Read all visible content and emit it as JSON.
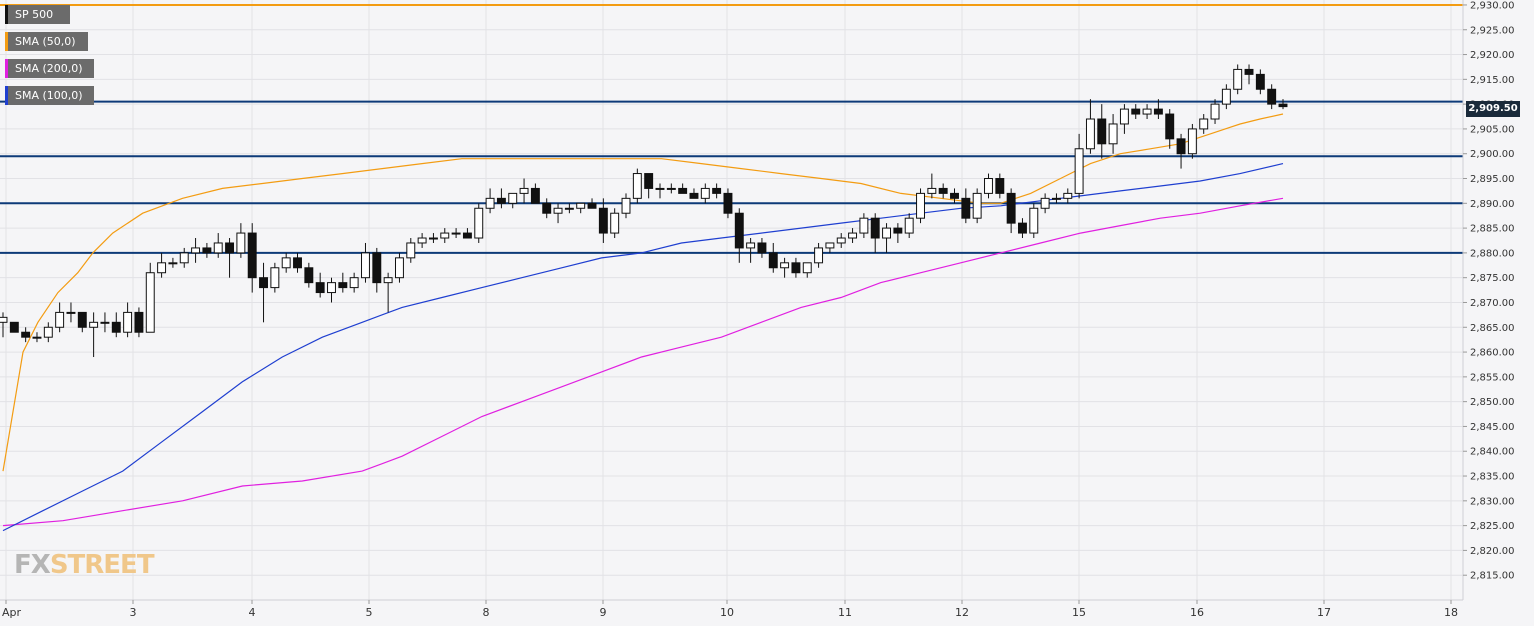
{
  "legend": [
    {
      "label": "SP 500",
      "color": "#111111"
    },
    {
      "label": "SMA (50,0)",
      "color": "#f39c12"
    },
    {
      "label": "SMA (200,0)",
      "color": "#e020e0"
    },
    {
      "label": "SMA (100,0)",
      "color": "#1f3fd0"
    }
  ],
  "price_badge": "2,909.50",
  "watermark": {
    "part1": "FX",
    "part2": "STREET"
  },
  "colors": {
    "background": "#f5f5f7",
    "grid": "#e2e2e6",
    "candle": "#111111",
    "sma50": "#f39c12",
    "sma100": "#1f3fd0",
    "sma200": "#e020e0",
    "level_line": "#0d3a78",
    "top_line": "#f39c12"
  },
  "chart_data": {
    "type": "candlestick",
    "title": "",
    "series_name": "SP 500",
    "ylim": [
      2810,
      2931
    ],
    "y_ticks": [
      2815,
      2820,
      2825,
      2830,
      2835,
      2840,
      2845,
      2850,
      2855,
      2860,
      2865,
      2870,
      2875,
      2880,
      2885,
      2890,
      2895,
      2900,
      2905,
      2910,
      2915,
      2920,
      2925,
      2930
    ],
    "y_tick_labels": [
      "2,815.00",
      "2,820.00",
      "2,825.00",
      "2,830.00",
      "2,835.00",
      "2,840.00",
      "2,845.00",
      "2,850.00",
      "2,855.00",
      "2,860.00",
      "2,865.00",
      "2,870.00",
      "2,875.00",
      "2,880.00",
      "2,885.00",
      "2,890.00",
      "2,895.00",
      "2,900.00",
      "2,905.00",
      "2,910.00",
      "2,915.00",
      "2,920.00",
      "2,925.00",
      "2,930.00"
    ],
    "x_labels": [
      "Apr",
      "3",
      "4",
      "5",
      "8",
      "9",
      "10",
      "11",
      "12",
      "15",
      "16",
      "17",
      "18"
    ],
    "grid": true,
    "last_price": 2909.5,
    "horizontal_levels": [
      2880,
      2890,
      2899.5,
      2910.5
    ],
    "top_level": 2930,
    "candles_ohlc": [
      [
        2866,
        2868,
        2863,
        2867
      ],
      [
        2866,
        2866,
        2864,
        2864
      ],
      [
        2864,
        2865,
        2862,
        2863
      ],
      [
        2863,
        2864,
        2862,
        2863
      ],
      [
        2863,
        2866,
        2862,
        2865
      ],
      [
        2865,
        2870,
        2864,
        2868
      ],
      [
        2868,
        2870,
        2866,
        2868
      ],
      [
        2868,
        2868,
        2864,
        2865
      ],
      [
        2865,
        2868,
        2859,
        2866
      ],
      [
        2866,
        2868,
        2864,
        2866
      ],
      [
        2866,
        2868,
        2863,
        2864
      ],
      [
        2864,
        2870,
        2863,
        2868
      ],
      [
        2868,
        2869,
        2863,
        2864
      ],
      [
        2864,
        2878,
        2864,
        2876
      ],
      [
        2876,
        2880,
        2875,
        2878
      ],
      [
        2878,
        2879,
        2877,
        2878
      ],
      [
        2878,
        2881,
        2877,
        2880
      ],
      [
        2880,
        2883,
        2878,
        2881
      ],
      [
        2881,
        2882,
        2879,
        2880
      ],
      [
        2880,
        2884,
        2879,
        2882
      ],
      [
        2882,
        2883,
        2875,
        2880
      ],
      [
        2880,
        2886,
        2879,
        2884
      ],
      [
        2884,
        2886,
        2872,
        2875
      ],
      [
        2875,
        2878,
        2866,
        2873
      ],
      [
        2873,
        2878,
        2872,
        2877
      ],
      [
        2877,
        2880,
        2876,
        2879
      ],
      [
        2879,
        2880,
        2876,
        2877
      ],
      [
        2877,
        2878,
        2873,
        2874
      ],
      [
        2874,
        2876,
        2871,
        2872
      ],
      [
        2872,
        2875,
        2870,
        2874
      ],
      [
        2874,
        2876,
        2872,
        2873
      ],
      [
        2873,
        2876,
        2872,
        2875
      ],
      [
        2875,
        2882,
        2874,
        2880
      ],
      [
        2880,
        2881,
        2872,
        2874
      ],
      [
        2874,
        2876,
        2868,
        2875
      ],
      [
        2875,
        2880,
        2874,
        2879
      ],
      [
        2879,
        2883,
        2878,
        2882
      ],
      [
        2882,
        2884,
        2881,
        2883
      ],
      [
        2883,
        2884,
        2882,
        2883
      ],
      [
        2883,
        2885,
        2882,
        2884
      ],
      [
        2884,
        2885,
        2883,
        2884
      ],
      [
        2884,
        2885,
        2883,
        2883
      ],
      [
        2883,
        2890,
        2882,
        2889
      ],
      [
        2889,
        2893,
        2888,
        2891
      ],
      [
        2891,
        2893,
        2889,
        2890
      ],
      [
        2890,
        2892,
        2889,
        2892
      ],
      [
        2892,
        2895,
        2890,
        2893
      ],
      [
        2893,
        2894,
        2890,
        2890
      ],
      [
        2890,
        2891,
        2887,
        2888
      ],
      [
        2888,
        2890,
        2886,
        2889
      ],
      [
        2889,
        2890,
        2888,
        2889
      ],
      [
        2889,
        2890,
        2888,
        2890
      ],
      [
        2890,
        2891,
        2889,
        2889
      ],
      [
        2889,
        2891,
        2882,
        2884
      ],
      [
        2884,
        2889,
        2883,
        2888
      ],
      [
        2888,
        2892,
        2887,
        2891
      ],
      [
        2891,
        2897,
        2890,
        2896
      ],
      [
        2896,
        2896,
        2891,
        2893
      ],
      [
        2893,
        2894,
        2891,
        2893
      ],
      [
        2893,
        2894,
        2892,
        2893
      ],
      [
        2893,
        2894,
        2892,
        2892
      ],
      [
        2892,
        2893,
        2891,
        2891
      ],
      [
        2891,
        2894,
        2890,
        2893
      ],
      [
        2893,
        2894,
        2891,
        2892
      ],
      [
        2892,
        2893,
        2887,
        2888
      ],
      [
        2888,
        2889,
        2878,
        2881
      ],
      [
        2881,
        2883,
        2878,
        2882
      ],
      [
        2882,
        2883,
        2879,
        2880
      ],
      [
        2880,
        2882,
        2876,
        2877
      ],
      [
        2877,
        2879,
        2875,
        2878
      ],
      [
        2878,
        2879,
        2875,
        2876
      ],
      [
        2876,
        2878,
        2875,
        2878
      ],
      [
        2878,
        2882,
        2877,
        2881
      ],
      [
        2881,
        2882,
        2880,
        2882
      ],
      [
        2882,
        2884,
        2881,
        2883
      ],
      [
        2883,
        2885,
        2882,
        2884
      ],
      [
        2884,
        2888,
        2883,
        2887
      ],
      [
        2887,
        2888,
        2880,
        2883
      ],
      [
        2883,
        2886,
        2880,
        2885
      ],
      [
        2885,
        2886,
        2882,
        2884
      ],
      [
        2884,
        2888,
        2883,
        2887
      ],
      [
        2887,
        2893,
        2886,
        2892
      ],
      [
        2892,
        2896,
        2891,
        2893
      ],
      [
        2893,
        2894,
        2891,
        2892
      ],
      [
        2892,
        2893,
        2890,
        2891
      ],
      [
        2891,
        2893,
        2886,
        2887
      ],
      [
        2887,
        2893,
        2886,
        2892
      ],
      [
        2892,
        2896,
        2891,
        2895
      ],
      [
        2895,
        2896,
        2891,
        2892
      ],
      [
        2892,
        2893,
        2884,
        2886
      ],
      [
        2886,
        2887,
        2883,
        2884
      ],
      [
        2884,
        2890,
        2883,
        2889
      ],
      [
        2889,
        2892,
        2888,
        2891
      ],
      [
        2891,
        2892,
        2890,
        2891
      ],
      [
        2891,
        2893,
        2890,
        2892
      ],
      [
        2892,
        2904,
        2891,
        2901
      ],
      [
        2901,
        2911,
        2900,
        2907
      ],
      [
        2907,
        2910,
        2899,
        2902
      ],
      [
        2902,
        2908,
        2900,
        2906
      ],
      [
        2906,
        2910,
        2904,
        2909
      ],
      [
        2909,
        2910,
        2907,
        2908
      ],
      [
        2908,
        2910,
        2907,
        2909
      ],
      [
        2909,
        2911,
        2907,
        2908
      ],
      [
        2908,
        2909,
        2901,
        2903
      ],
      [
        2903,
        2904,
        2897,
        2900
      ],
      [
        2900,
        2906,
        2899,
        2905
      ],
      [
        2905,
        2908,
        2904,
        2907
      ],
      [
        2907,
        2911,
        2906,
        2910
      ],
      [
        2910,
        2914,
        2909,
        2913
      ],
      [
        2913,
        2918,
        2912,
        2917
      ],
      [
        2917,
        2918,
        2914,
        2916
      ],
      [
        2916,
        2917,
        2912,
        2913
      ],
      [
        2913,
        2914,
        2909,
        2910
      ],
      [
        2910,
        2911,
        2909,
        2909.5
      ]
    ],
    "sma_50": [
      [
        0,
        2836
      ],
      [
        10,
        2848
      ],
      [
        20,
        2860
      ],
      [
        35,
        2866
      ],
      [
        55,
        2872
      ],
      [
        75,
        2876
      ],
      [
        90,
        2880
      ],
      [
        110,
        2884
      ],
      [
        140,
        2888
      ],
      [
        180,
        2891
      ],
      [
        220,
        2893
      ],
      [
        260,
        2894
      ],
      [
        300,
        2895
      ],
      [
        340,
        2896
      ],
      [
        380,
        2897
      ],
      [
        420,
        2898
      ],
      [
        460,
        2899
      ],
      [
        500,
        2899
      ],
      [
        540,
        2899
      ],
      [
        580,
        2899
      ],
      [
        620,
        2899
      ],
      [
        660,
        2899
      ],
      [
        700,
        2898
      ],
      [
        740,
        2897
      ],
      [
        780,
        2896
      ],
      [
        820,
        2895
      ],
      [
        860,
        2894
      ],
      [
        900,
        2892
      ],
      [
        940,
        2891
      ],
      [
        980,
        2890
      ],
      [
        1000,
        2890
      ],
      [
        1030,
        2892
      ],
      [
        1060,
        2895
      ],
      [
        1090,
        2898
      ],
      [
        1120,
        2900
      ],
      [
        1150,
        2901
      ],
      [
        1180,
        2902
      ],
      [
        1210,
        2904
      ],
      [
        1240,
        2906
      ],
      [
        1260,
        2907
      ],
      [
        1283,
        2908
      ]
    ],
    "sma_100": [
      [
        0,
        2824
      ],
      [
        40,
        2828
      ],
      [
        80,
        2832
      ],
      [
        120,
        2836
      ],
      [
        160,
        2842
      ],
      [
        200,
        2848
      ],
      [
        240,
        2854
      ],
      [
        280,
        2859
      ],
      [
        320,
        2863
      ],
      [
        360,
        2866
      ],
      [
        400,
        2869
      ],
      [
        440,
        2871
      ],
      [
        480,
        2873
      ],
      [
        520,
        2875
      ],
      [
        560,
        2877
      ],
      [
        600,
        2879
      ],
      [
        640,
        2880
      ],
      [
        680,
        2882
      ],
      [
        720,
        2883
      ],
      [
        760,
        2884
      ],
      [
        800,
        2885
      ],
      [
        840,
        2886
      ],
      [
        880,
        2887
      ],
      [
        920,
        2888
      ],
      [
        960,
        2889
      ],
      [
        1000,
        2889.5
      ],
      [
        1040,
        2890.5
      ],
      [
        1080,
        2891.5
      ],
      [
        1120,
        2892.5
      ],
      [
        1160,
        2893.5
      ],
      [
        1200,
        2894.5
      ],
      [
        1240,
        2896
      ],
      [
        1283,
        2898
      ]
    ],
    "sma_200": [
      [
        0,
        2825
      ],
      [
        60,
        2826
      ],
      [
        120,
        2828
      ],
      [
        180,
        2830
      ],
      [
        240,
        2833
      ],
      [
        300,
        2834
      ],
      [
        360,
        2836
      ],
      [
        400,
        2839
      ],
      [
        440,
        2843
      ],
      [
        480,
        2847
      ],
      [
        520,
        2850
      ],
      [
        560,
        2853
      ],
      [
        600,
        2856
      ],
      [
        640,
        2859
      ],
      [
        680,
        2861
      ],
      [
        720,
        2863
      ],
      [
        760,
        2866
      ],
      [
        800,
        2869
      ],
      [
        840,
        2871
      ],
      [
        880,
        2874
      ],
      [
        920,
        2876
      ],
      [
        960,
        2878
      ],
      [
        1000,
        2880
      ],
      [
        1040,
        2882
      ],
      [
        1080,
        2884
      ],
      [
        1120,
        2885.5
      ],
      [
        1160,
        2887
      ],
      [
        1200,
        2888
      ],
      [
        1240,
        2889.5
      ],
      [
        1283,
        2891
      ]
    ]
  }
}
